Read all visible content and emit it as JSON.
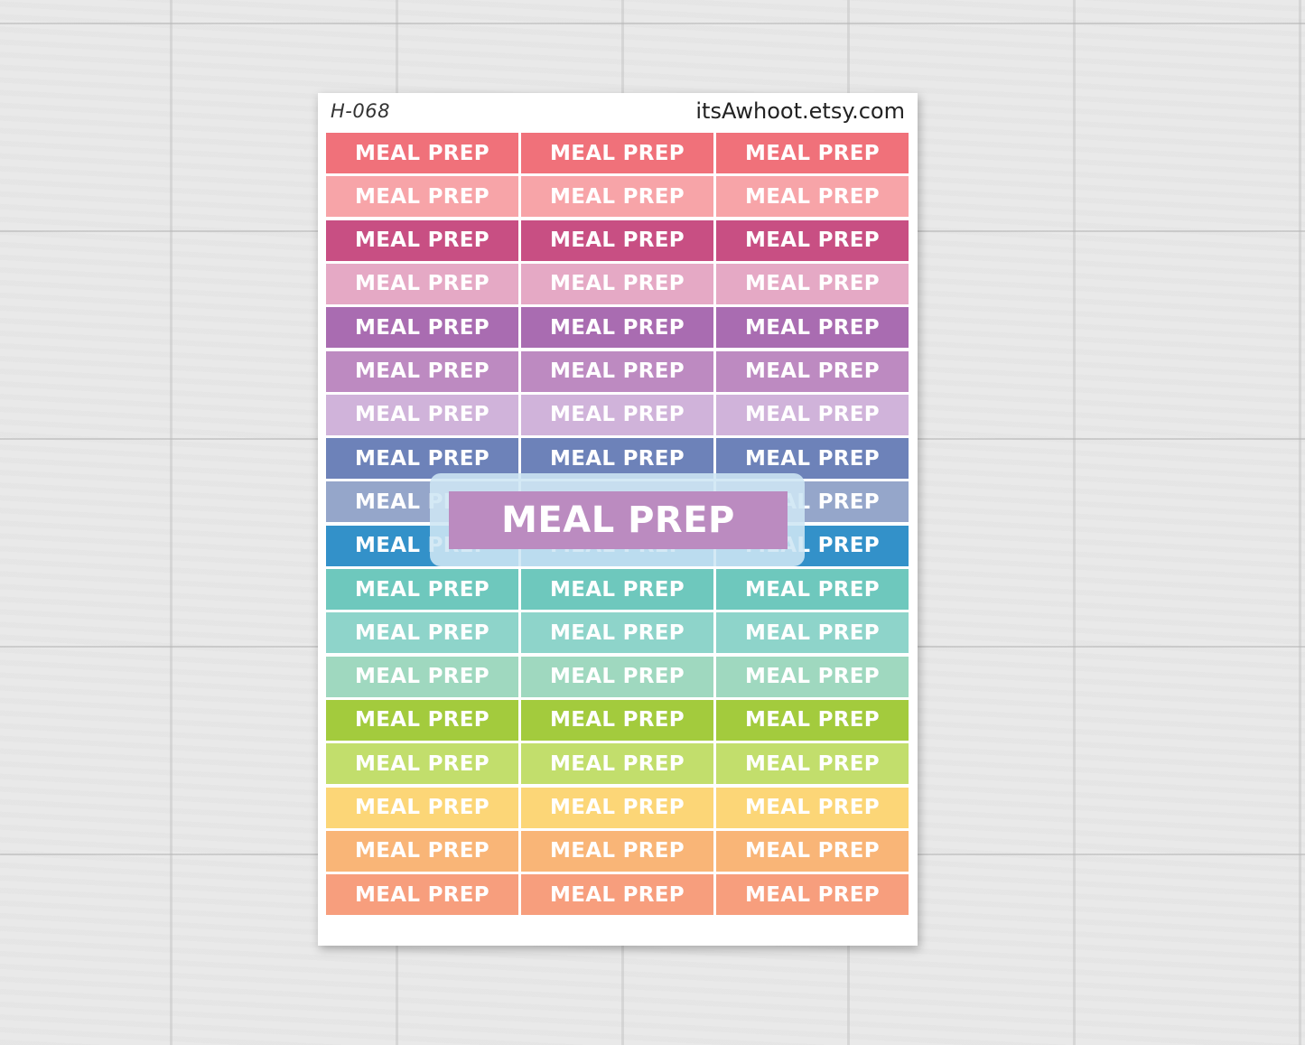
{
  "sheet": {
    "code": "H-068",
    "shop": "itsAwhoot.etsy.com"
  },
  "sticker_label": "MEAL PREP",
  "preview_label": "MEAL PREP",
  "rows": [
    {
      "color": "#f0717a"
    },
    {
      "color": "#f7a4a8"
    },
    {
      "color": "#c84f83"
    },
    {
      "color": "#e5a9c5"
    },
    {
      "color": "#a96cb1"
    },
    {
      "color": "#bd8ac1"
    },
    {
      "color": "#d0b3da"
    },
    {
      "color": "#6d82b9"
    },
    {
      "color": "#95a6ca"
    },
    {
      "color": "#3391c9"
    },
    {
      "color": "#6ec8bd"
    },
    {
      "color": "#8ed4ca"
    },
    {
      "color": "#9fd8bf"
    },
    {
      "color": "#a3cb3d"
    },
    {
      "color": "#c2de6c"
    },
    {
      "color": "#fcd677"
    },
    {
      "color": "#f9b577"
    },
    {
      "color": "#f79e7d"
    }
  ]
}
